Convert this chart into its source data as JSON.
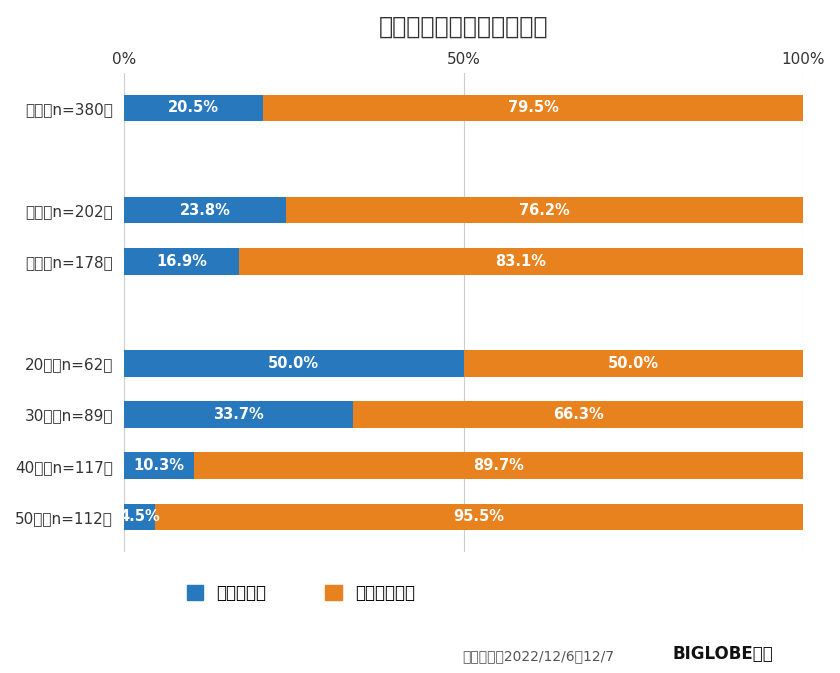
{
  "title": "お年玉のキャッシュレス化",
  "categories": [
    "全体（n=380）",
    "",
    "男性（n=202）",
    "女性（n=178）",
    "",
    "20代（n=62）",
    "30代（n=89）",
    "40代（n=117）",
    "50代（n=112）"
  ],
  "yes_values": [
    20.5,
    0,
    23.8,
    16.9,
    0,
    50.0,
    33.7,
    10.3,
    4.5
  ],
  "no_values": [
    79.5,
    0,
    76.2,
    83.1,
    0,
    50.0,
    66.3,
    89.7,
    95.5
  ],
  "yes_labels": [
    "20.5%",
    "",
    "23.8%",
    "16.9%",
    "",
    "50.0%",
    "33.7%",
    "10.3%",
    "4.5%"
  ],
  "no_labels": [
    "79.5%",
    "",
    "76.2%",
    "83.1%",
    "",
    "50.0%",
    "66.3%",
    "89.7%",
    "95.5%"
  ],
  "color_yes": "#2878BE",
  "color_no": "#E8821E",
  "legend_yes": "考えている",
  "legend_no": "考えていない",
  "footnote": "調査期間：2022/12/6〜12/7",
  "footnote_bold": "BIGLOBE調べ",
  "bg_color": "#FFFFFF",
  "bar_height": 0.52,
  "title_fontsize": 17,
  "label_fontsize": 10.5,
  "tick_fontsize": 11,
  "legend_fontsize": 12,
  "footnote_fontsize": 10
}
